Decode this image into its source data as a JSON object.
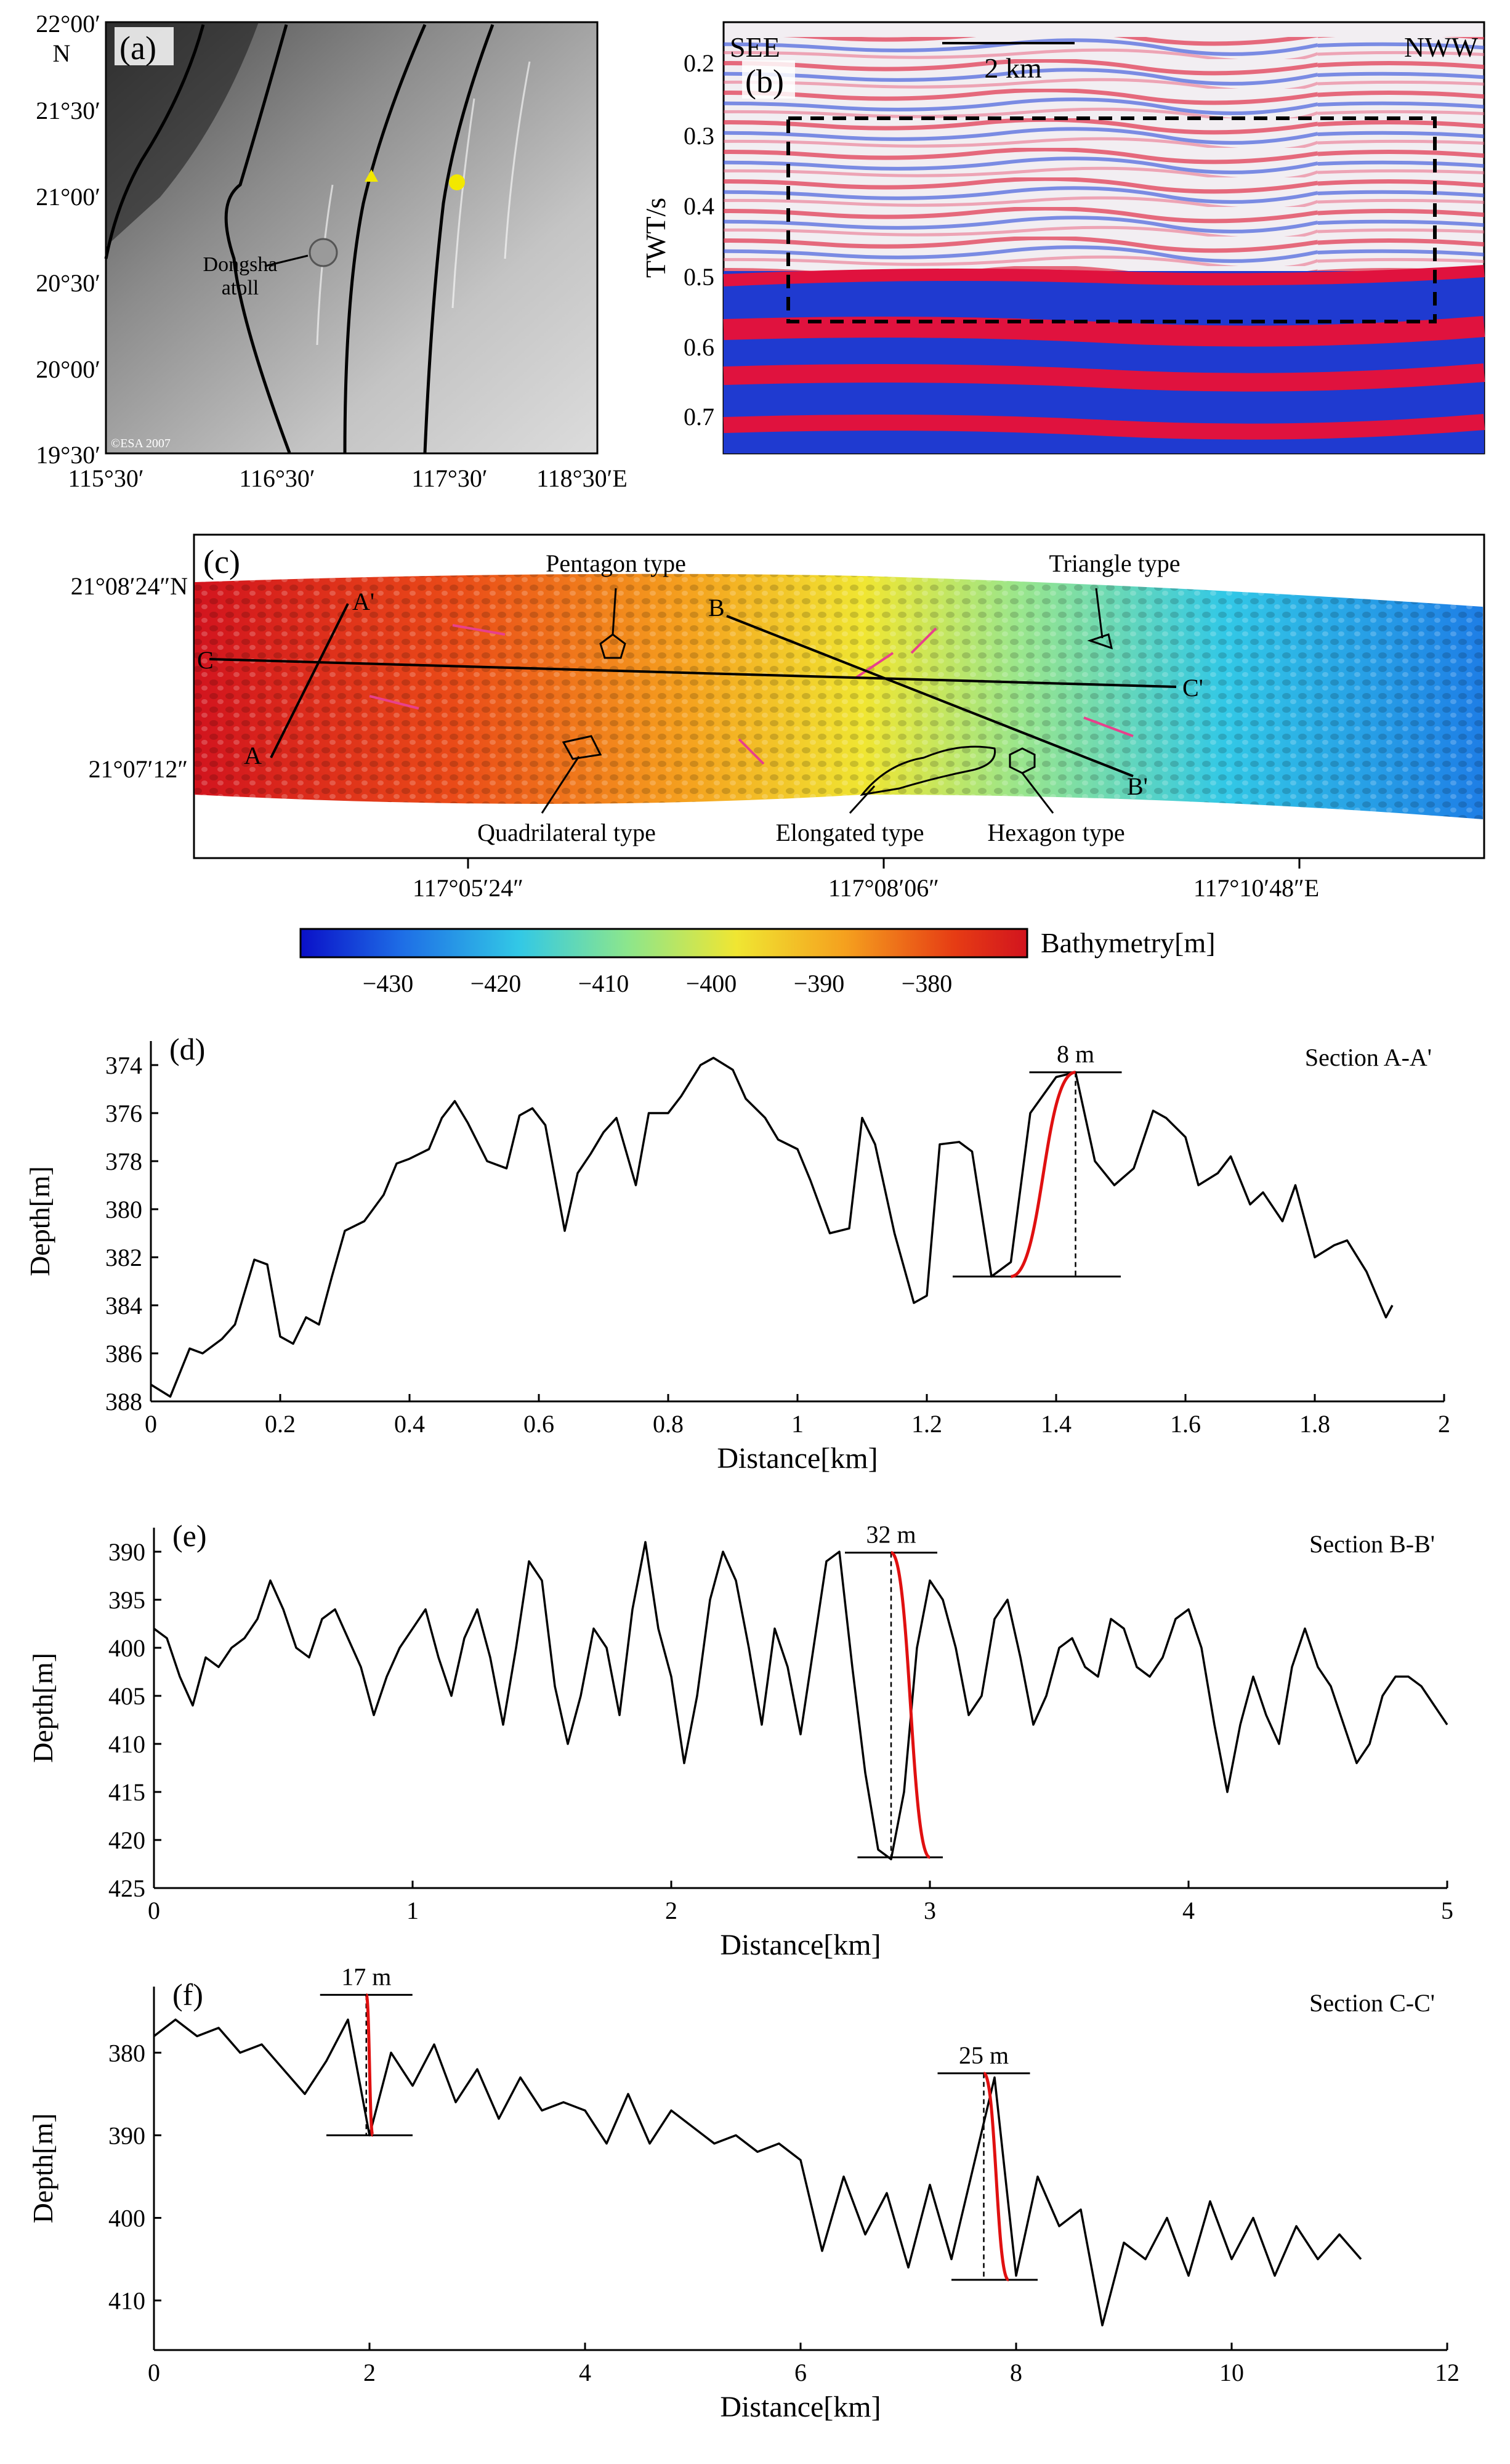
{
  "panel_a": {
    "label": "(a)",
    "lat_ticks": [
      "22°00′",
      "21°30′",
      "21°00′",
      "20°30′",
      "20°00′",
      "19°30′"
    ],
    "lat_unit": "N",
    "lon_ticks": [
      "115°30′",
      "116°30′",
      "117°30′",
      "118°30′E"
    ],
    "place_label": "Dongsha atoll",
    "credit": "©ESA 2007"
  },
  "panel_b": {
    "label": "(b)",
    "left_label": "SEE",
    "right_label": "NWW",
    "scale_label": "2 km",
    "ylabel": "TWT/s",
    "y_ticks": [
      "0.2",
      "0.3",
      "0.4",
      "0.5",
      "0.6",
      "0.7"
    ]
  },
  "panel_c": {
    "label": "(c)",
    "lat_ticks": [
      "21°08′24″N",
      "21°07′12″"
    ],
    "lon_ticks": [
      "117°05′24″",
      "117°08′06″",
      "117°10′48″E"
    ],
    "types": [
      "Pentagon type",
      "Triangle type",
      "Quadrilateral type",
      "Elongated type",
      "Hexagon type"
    ],
    "profile_labels": [
      "A",
      "A'",
      "B",
      "B'",
      "C",
      "C'"
    ],
    "colorbar_label": "Bathymetry[m]",
    "colorbar_ticks": [
      "−430",
      "−420",
      "−410",
      "−400",
      "−390",
      "−380"
    ],
    "colorbar_colors": [
      "#0a10c8",
      "#1e6ee6",
      "#32c8e6",
      "#8ce68c",
      "#f0e632",
      "#f5a01e",
      "#e63c14",
      "#d2141e"
    ]
  },
  "chart_data": [
    {
      "type": "line",
      "id": "d",
      "label": "(d)",
      "title": "Section A-A'",
      "xlabel": "Distance[km]",
      "ylabel": "Depth[m]",
      "xlim": [
        0,
        2
      ],
      "ylim": [
        388,
        373
      ],
      "x_ticks": [
        0,
        0.2,
        0.4,
        0.6,
        0.8,
        1,
        1.2,
        1.4,
        1.6,
        1.8,
        2
      ],
      "x_tick_labels": [
        "0",
        "0.2",
        "0.4",
        "0.6",
        "0.8",
        "1",
        "1.2",
        "1.4",
        "1.6",
        "1.8",
        "2"
      ],
      "y_ticks": [
        374,
        376,
        378,
        380,
        382,
        384,
        386,
        388
      ],
      "y_tick_labels": [
        "374",
        "376",
        "378",
        "380",
        "382",
        "384",
        "386",
        "388"
      ],
      "annotation": {
        "text": "8 m",
        "x0": 1.33,
        "y0": 382.8,
        "x1": 1.43,
        "y1": 374.3,
        "line_x_range": [
          1.24,
          1.5
        ]
      },
      "x": [
        0,
        0.03,
        0.06,
        0.08,
        0.11,
        0.13,
        0.16,
        0.18,
        0.2,
        0.22,
        0.24,
        0.26,
        0.28,
        0.3,
        0.33,
        0.36,
        0.38,
        0.4,
        0.43,
        0.45,
        0.47,
        0.49,
        0.52,
        0.55,
        0.57,
        0.59,
        0.61,
        0.64,
        0.66,
        0.68,
        0.7,
        0.72,
        0.75,
        0.77,
        0.8,
        0.82,
        0.85,
        0.87,
        0.9,
        0.92,
        0.95,
        0.97,
        1.0,
        1.02,
        1.05,
        1.08,
        1.1,
        1.12,
        1.15,
        1.18,
        1.2,
        1.22,
        1.25,
        1.27,
        1.3,
        1.33,
        1.36,
        1.4,
        1.43,
        1.46,
        1.49,
        1.52,
        1.55,
        1.57,
        1.6,
        1.62,
        1.65,
        1.67,
        1.7,
        1.72,
        1.75,
        1.77,
        1.8,
        1.83,
        1.85,
        1.88,
        1.91,
        1.92
      ],
      "y": [
        387.3,
        387.8,
        385.8,
        386.0,
        385.4,
        384.8,
        382.1,
        382.3,
        385.3,
        385.6,
        384.5,
        384.8,
        382.8,
        380.9,
        380.5,
        379.4,
        378.1,
        377.9,
        377.5,
        376.2,
        375.5,
        376.4,
        378.0,
        378.3,
        376.1,
        375.8,
        376.5,
        380.9,
        378.5,
        377.7,
        376.8,
        376.2,
        379.0,
        376.0,
        376.0,
        375.3,
        374.0,
        373.7,
        374.2,
        375.4,
        376.2,
        377.1,
        377.5,
        378.8,
        381.0,
        380.8,
        376.2,
        377.3,
        381.0,
        383.9,
        383.6,
        377.3,
        377.2,
        377.6,
        382.8,
        382.2,
        376.0,
        374.5,
        374.3,
        378.0,
        379.0,
        378.3,
        375.9,
        376.2,
        377.0,
        379.0,
        378.5,
        377.8,
        379.8,
        379.3,
        380.5,
        379.0,
        382.0,
        381.5,
        381.3,
        382.6,
        384.5,
        384.0
      ]
    },
    {
      "type": "line",
      "id": "e",
      "label": "(e)",
      "title": "Section B-B'",
      "xlabel": "Distance[km]",
      "ylabel": "Depth[m]",
      "xlim": [
        0,
        5
      ],
      "ylim": [
        425,
        387.5
      ],
      "x_ticks": [
        0,
        1,
        2,
        3,
        4,
        5
      ],
      "x_tick_labels": [
        "0",
        "1",
        "2",
        "3",
        "4",
        "5"
      ],
      "y_ticks": [
        390,
        395,
        400,
        405,
        410,
        415,
        420,
        425
      ],
      "y_tick_labels": [
        "390",
        "395",
        "400",
        "405",
        "410",
        "415",
        "420",
        "425"
      ],
      "annotation": {
        "text": "32 m",
        "x0": 2.85,
        "y0": 390.1,
        "x1": 3.0,
        "y1": 421.8,
        "line_x_range": [
          2.72,
          3.05
        ]
      },
      "x": [
        0,
        0.05,
        0.1,
        0.15,
        0.2,
        0.25,
        0.3,
        0.35,
        0.4,
        0.45,
        0.5,
        0.55,
        0.6,
        0.65,
        0.7,
        0.75,
        0.8,
        0.85,
        0.9,
        0.95,
        1.0,
        1.05,
        1.1,
        1.15,
        1.2,
        1.25,
        1.3,
        1.35,
        1.4,
        1.45,
        1.5,
        1.55,
        1.6,
        1.65,
        1.7,
        1.75,
        1.8,
        1.85,
        1.9,
        1.95,
        2.0,
        2.05,
        2.1,
        2.15,
        2.2,
        2.25,
        2.3,
        2.35,
        2.4,
        2.45,
        2.5,
        2.55,
        2.6,
        2.65,
        2.7,
        2.75,
        2.8,
        2.85,
        2.9,
        2.95,
        3.0,
        3.05,
        3.1,
        3.15,
        3.2,
        3.25,
        3.3,
        3.35,
        3.4,
        3.45,
        3.5,
        3.55,
        3.6,
        3.65,
        3.7,
        3.75,
        3.8,
        3.85,
        3.9,
        3.95,
        4.0,
        4.05,
        4.1,
        4.15,
        4.2,
        4.25,
        4.3,
        4.35,
        4.4,
        4.45,
        4.5,
        4.55,
        4.6,
        4.65,
        4.7,
        4.75,
        4.8,
        4.85,
        4.9,
        4.95,
        5.0
      ],
      "y": [
        398,
        399,
        403,
        406,
        401,
        402,
        400,
        399,
        397,
        393,
        396,
        400,
        401,
        397,
        396,
        399,
        402,
        407,
        403,
        400,
        398,
        396,
        401,
        405,
        399,
        396,
        401,
        408,
        400,
        391,
        393,
        404,
        410,
        405,
        398,
        400,
        407,
        396,
        389,
        398,
        403,
        412,
        405,
        395,
        390,
        393,
        400,
        408,
        398,
        402,
        409,
        400,
        391,
        390,
        402,
        413,
        421,
        422,
        415,
        400,
        393,
        395,
        400,
        407,
        405,
        397,
        395,
        401,
        408,
        405,
        400,
        399,
        402,
        403,
        397,
        398,
        402,
        403,
        401,
        397,
        396,
        400,
        408,
        415,
        408,
        403,
        407,
        410,
        402,
        398,
        402,
        404,
        408,
        412,
        410,
        405,
        403,
        403,
        404,
        406,
        408
      ]
    },
    {
      "type": "line",
      "id": "f",
      "label": "(f)",
      "title": "Section C-C'",
      "xlabel": "Distance[km]",
      "ylabel": "Depth[m]",
      "xlim": [
        0,
        12
      ],
      "ylim": [
        416,
        372
      ],
      "x_ticks": [
        0,
        2,
        4,
        6,
        8,
        10,
        12
      ],
      "x_tick_labels": [
        "0",
        "2",
        "4",
        "6",
        "8",
        "10",
        "12"
      ],
      "y_ticks": [
        380,
        390,
        400,
        410
      ],
      "y_tick_labels": [
        "380",
        "390",
        "400",
        "410"
      ],
      "annotations": [
        {
          "text": "17 m",
          "x0": 1.97,
          "y0": 373.0,
          "x1": 2.03,
          "y1": 390.0,
          "line_x_range": [
            1.6,
            2.4
          ]
        },
        {
          "text": "25 m",
          "x0": 7.7,
          "y0": 382.5,
          "x1": 7.93,
          "y1": 407.5,
          "line_x_range": [
            7.4,
            8.2
          ]
        }
      ],
      "x": [
        0,
        0.2,
        0.4,
        0.6,
        0.8,
        1.0,
        1.2,
        1.4,
        1.6,
        1.8,
        2.0,
        2.2,
        2.4,
        2.6,
        2.8,
        3.0,
        3.2,
        3.4,
        3.6,
        3.8,
        4.0,
        4.2,
        4.4,
        4.6,
        4.8,
        5.0,
        5.2,
        5.4,
        5.6,
        5.8,
        6.0,
        6.2,
        6.4,
        6.6,
        6.8,
        7.0,
        7.2,
        7.4,
        7.6,
        7.8,
        8.0,
        8.2,
        8.4,
        8.6,
        8.8,
        9.0,
        9.2,
        9.4,
        9.6,
        9.8,
        10.0,
        10.2,
        10.4,
        10.6,
        10.8,
        11.0,
        11.2
      ],
      "y": [
        378,
        376,
        378,
        377,
        380,
        379,
        382,
        385,
        381,
        376,
        390,
        380,
        384,
        379,
        386,
        382,
        388,
        383,
        387,
        386,
        387,
        391,
        385,
        391,
        387,
        389,
        391,
        390,
        392,
        391,
        393,
        404,
        395,
        402,
        397,
        406,
        396,
        405,
        394,
        383,
        407,
        395,
        401,
        399,
        413,
        403,
        405,
        400,
        407,
        398,
        405,
        400,
        407,
        401,
        405,
        402,
        405
      ]
    }
  ]
}
